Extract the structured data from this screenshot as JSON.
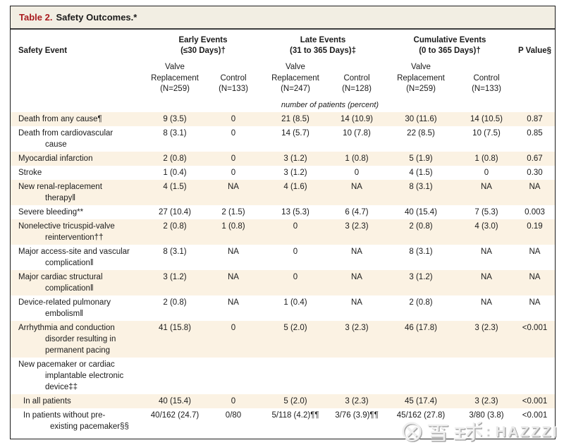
{
  "title": {
    "prefix": "Table 2.",
    "rest": "Safety Outcomes.*"
  },
  "columns": {
    "row_header": "Safety Event",
    "groups": [
      {
        "title": "Early Events\n(≤30 Days)†",
        "sub": [
          "Valve\nReplacement\n(N=259)",
          "Control\n(N=133)"
        ]
      },
      {
        "title": "Late Events\n(31 to 365 Days)‡",
        "sub": [
          "Valve\nReplacement\n(N=247)",
          "Control\n(N=128)"
        ]
      },
      {
        "title": "Cumulative Events\n(0 to 365 Days)†",
        "sub": [
          "Valve\nReplacement\n(N=259)",
          "Control\n(N=133)"
        ]
      }
    ],
    "p_value": "P Value§"
  },
  "units_note": "number of patients (percent)",
  "rows": [
    {
      "label": "Death from any cause¶",
      "indent": 0,
      "shaded": true,
      "values": [
        "9 (3.5)",
        "0",
        "21 (8.5)",
        "14 (10.9)",
        "30 (11.6)",
        "14 (10.5)",
        "0.87"
      ]
    },
    {
      "label": "Death from cardiovascular\ncause",
      "indent": 0,
      "shaded": false,
      "values": [
        "8 (3.1)",
        "0",
        "14 (5.7)",
        "10 (7.8)",
        "22 (8.5)",
        "10 (7.5)",
        "0.85"
      ]
    },
    {
      "label": "Myocardial infarction",
      "indent": 0,
      "shaded": true,
      "values": [
        "2 (0.8)",
        "0",
        "3 (1.2)",
        "1 (0.8)",
        "5 (1.9)",
        "1 (0.8)",
        "0.67"
      ]
    },
    {
      "label": "Stroke",
      "indent": 0,
      "shaded": false,
      "values": [
        "1 (0.4)",
        "0",
        "3 (1.2)",
        "0",
        "4 (1.5)",
        "0",
        "0.30"
      ]
    },
    {
      "label": "New renal-replacement\ntherapy‖",
      "indent": 0,
      "shaded": true,
      "values": [
        "4 (1.5)",
        "NA",
        "4 (1.6)",
        "NA",
        "8 (3.1)",
        "NA",
        "NA"
      ]
    },
    {
      "label": "Severe bleeding**",
      "indent": 0,
      "shaded": false,
      "values": [
        "27 (10.4)",
        "2 (1.5)",
        "13 (5.3)",
        "6 (4.7)",
        "40 (15.4)",
        "7 (5.3)",
        "0.003"
      ]
    },
    {
      "label": "Nonelective tricuspid-valve\nreintervention††",
      "indent": 0,
      "shaded": true,
      "values": [
        "2 (0.8)",
        "1 (0.8)",
        "0",
        "3 (2.3)",
        "2 (0.8)",
        "4 (3.0)",
        "0.19"
      ]
    },
    {
      "label": "Major access-site and vascular\ncomplication‖",
      "indent": 0,
      "shaded": false,
      "values": [
        "8 (3.1)",
        "NA",
        "0",
        "NA",
        "8 (3.1)",
        "NA",
        "NA"
      ]
    },
    {
      "label": "Major cardiac structural\ncomplication‖",
      "indent": 0,
      "shaded": true,
      "values": [
        "3 (1.2)",
        "NA",
        "0",
        "NA",
        "3 (1.2)",
        "NA",
        "NA"
      ]
    },
    {
      "label": "Device-related pulmonary\nembolism‖",
      "indent": 0,
      "shaded": false,
      "values": [
        "2 (0.8)",
        "NA",
        "1 (0.4)",
        "NA",
        "2 (0.8)",
        "NA",
        "NA"
      ]
    },
    {
      "label": "Arrhythmia and conduction\ndisorder resulting in\npermanent pacing",
      "indent": 0,
      "shaded": true,
      "values": [
        "41 (15.8)",
        "0",
        "5 (2.0)",
        "3 (2.3)",
        "46 (17.8)",
        "3 (2.3)",
        "<0.001"
      ]
    },
    {
      "label": "New pacemaker or cardiac\nimplantable electronic\ndevice‡‡",
      "indent": 0,
      "shaded": false,
      "values": [
        "",
        "",
        "",
        "",
        "",
        "",
        ""
      ]
    },
    {
      "label": "In all patients",
      "indent": 1,
      "shaded": true,
      "values": [
        "40 (15.4)",
        "0",
        "5 (2.0)",
        "3 (2.3)",
        "45 (17.4)",
        "3 (2.3)",
        "<0.001"
      ]
    },
    {
      "label": "In patients without pre-\nexisting pacemaker§§",
      "indent": 1,
      "shaded": false,
      "values": [
        "40/162 (24.7)",
        "0/80",
        "5/118 (4.2)¶¶",
        "3/76 (3.9)¶¶",
        "45/162 (27.8)",
        "3/80 (3.8)",
        "<0.001"
      ]
    }
  ],
  "watermark": {
    "site_name": "雪球",
    "separator": ":",
    "username": "HAZZZI"
  },
  "colors": {
    "accent_red": "#a91b1f",
    "stripe": "#fbf2e3",
    "title_bar": "#f2eee3",
    "border_dark": "#1c1c1c"
  }
}
